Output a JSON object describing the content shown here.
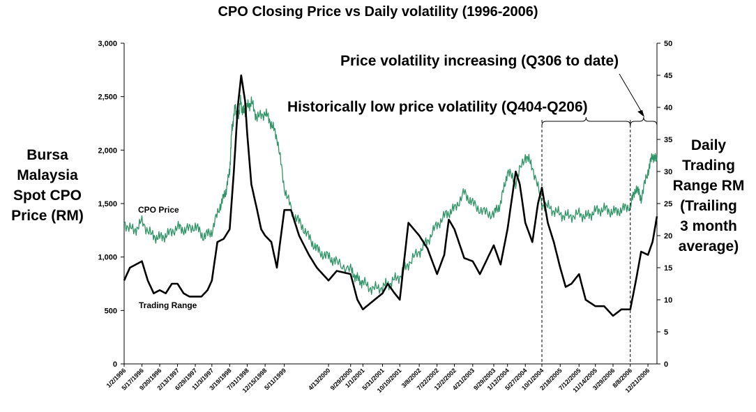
{
  "chart_data": {
    "type": "line",
    "title": "CPO Closing Price vs Daily volatility (1996-2006)",
    "ylabel_left": "Bursa\nMalaysia\nSpot CPO\nPrice (RM)",
    "ylabel_right": "Daily\nTrading\nRange RM\n(Trailing\n3 month\naverage)",
    "y_left": {
      "min": 0,
      "max": 3000,
      "ticks": [
        "0",
        "500",
        "1,000",
        "1,500",
        "2,000",
        "2,500",
        "3,000"
      ]
    },
    "y_right": {
      "min": 0,
      "max": 50,
      "ticks": [
        "0",
        "5",
        "10",
        "15",
        "20",
        "25",
        "30",
        "35",
        "40",
        "45",
        "50"
      ]
    },
    "x_ticks": [
      "1/2/1996",
      "5/17/1996",
      "9/30/1996",
      "2/13/1997",
      "6/29/1997",
      "11/3/1997",
      "3/19/1998",
      "7/31/1998",
      "12/15/1998",
      "5/11/1999",
      "4/13/2000",
      "9/29/2000",
      "1/1/2001",
      "5/31/2001",
      "10/10/2001",
      "3/8/2002",
      "7/22/2002",
      "12/2/2002",
      "4/21/2003",
      "9/29/2003",
      "1/12/2004",
      "5/27/2004",
      "10/1/2004",
      "2/18/2005",
      "7/12/2005",
      "11/14/2005",
      "3/29/2006",
      "8/8/2006",
      "12/21/2006"
    ],
    "x_range": [
      "1/2/1996",
      "2/28/2007"
    ],
    "series": [
      {
        "name": "CPO Price",
        "axis": "left",
        "color": "#2e9465",
        "points": [
          [
            "1/2/1996",
            1320
          ],
          [
            "3/15/1996",
            1240
          ],
          [
            "5/17/1996",
            1330
          ],
          [
            "8/1/1996",
            1200
          ],
          [
            "9/30/1996",
            1180
          ],
          [
            "12/1/1996",
            1210
          ],
          [
            "2/13/1997",
            1280
          ],
          [
            "4/15/1997",
            1250
          ],
          [
            "6/29/1997",
            1290
          ],
          [
            "9/1/1997",
            1190
          ],
          [
            "11/3/1997",
            1240
          ],
          [
            "1/5/1998",
            1480
          ],
          [
            "2/15/1998",
            1600
          ],
          [
            "3/19/1998",
            1800
          ],
          [
            "4/5/1998",
            2200
          ],
          [
            "5/1/1998",
            2400
          ],
          [
            "5/20/1998",
            2300
          ],
          [
            "6/10/1998",
            2450
          ],
          [
            "7/1/1998",
            2350
          ],
          [
            "7/31/1998",
            2400
          ],
          [
            "9/1/1998",
            2450
          ],
          [
            "10/15/1998",
            2300
          ],
          [
            "12/15/1998",
            2350
          ],
          [
            "2/1/1999",
            2250
          ],
          [
            "3/20/1999",
            2100
          ],
          [
            "5/11/1999",
            1650
          ],
          [
            "7/15/1999",
            1400
          ],
          [
            "9/20/1999",
            1300
          ],
          [
            "12/1/1999",
            1150
          ],
          [
            "2/1/2000",
            1050
          ],
          [
            "4/13/2000",
            1000
          ],
          [
            "6/15/2000",
            950
          ],
          [
            "9/29/2000",
            880
          ],
          [
            "11/15/2000",
            800
          ],
          [
            "1/1/2001",
            760
          ],
          [
            "3/15/2001",
            700
          ],
          [
            "5/31/2001",
            720
          ],
          [
            "8/1/2001",
            760
          ],
          [
            "10/10/2001",
            820
          ],
          [
            "12/15/2001",
            940
          ],
          [
            "3/8/2002",
            1050
          ],
          [
            "5/10/2002",
            1150
          ],
          [
            "7/22/2002",
            1300
          ],
          [
            "10/1/2002",
            1400
          ],
          [
            "12/2/2002",
            1450
          ],
          [
            "2/15/2003",
            1600
          ],
          [
            "4/21/2003",
            1500
          ],
          [
            "7/10/2003",
            1420
          ],
          [
            "9/29/2003",
            1400
          ],
          [
            "11/20/2003",
            1500
          ],
          [
            "1/12/2004",
            1800
          ],
          [
            "3/15/2004",
            1700
          ],
          [
            "5/27/2004",
            1950
          ],
          [
            "7/20/2004",
            1850
          ],
          [
            "10/1/2004",
            1500
          ],
          [
            "12/10/2004",
            1450
          ],
          [
            "2/18/2005",
            1400
          ],
          [
            "4/25/2005",
            1380
          ],
          [
            "7/12/2005",
            1400
          ],
          [
            "9/15/2005",
            1380
          ],
          [
            "11/14/2005",
            1430
          ],
          [
            "1/20/2006",
            1450
          ],
          [
            "3/29/2006",
            1420
          ],
          [
            "6/1/2006",
            1440
          ],
          [
            "8/8/2006",
            1480
          ],
          [
            "9/20/2006",
            1650
          ],
          [
            "10/30/2006",
            1550
          ],
          [
            "12/21/2006",
            1800
          ],
          [
            "1/25/2007",
            1950
          ],
          [
            "2/28/2007",
            1900
          ]
        ]
      },
      {
        "name": "Trading Range",
        "axis": "right",
        "color": "#000000",
        "points": [
          [
            "1/2/1996",
            13
          ],
          [
            "2/15/1996",
            15
          ],
          [
            "4/1/1996",
            15.5
          ],
          [
            "5/17/1996",
            16
          ],
          [
            "7/1/1996",
            13
          ],
          [
            "8/15/1996",
            11
          ],
          [
            "9/30/1996",
            11.5
          ],
          [
            "11/15/1996",
            11
          ],
          [
            "1/1/1997",
            12.5
          ],
          [
            "2/13/1997",
            12.5
          ],
          [
            "4/1/1997",
            11
          ],
          [
            "5/15/1997",
            10.5
          ],
          [
            "6/29/1997",
            10.5
          ],
          [
            "8/15/1997",
            10.5
          ],
          [
            "10/1/1997",
            11.5
          ],
          [
            "11/3/1997",
            13
          ],
          [
            "12/15/1997",
            19
          ],
          [
            "2/1/1998",
            19.5
          ],
          [
            "3/19/1998",
            21
          ],
          [
            "4/20/1998",
            30
          ],
          [
            "5/20/1998",
            40
          ],
          [
            "6/15/1998",
            45
          ],
          [
            "7/15/1998",
            41
          ],
          [
            "7/31/1998",
            36
          ],
          [
            "9/1/1998",
            28
          ],
          [
            "10/15/1998",
            24
          ],
          [
            "11/15/1998",
            21
          ],
          [
            "12/15/1998",
            20
          ],
          [
            "2/1/1999",
            19
          ],
          [
            "3/15/1999",
            15
          ],
          [
            "5/11/1999",
            24
          ],
          [
            "7/1/1999",
            24
          ],
          [
            "9/1/1999",
            20
          ],
          [
            "11/15/1999",
            17
          ],
          [
            "1/15/2000",
            15
          ],
          [
            "4/13/2000",
            13
          ],
          [
            "6/15/2000",
            14.5
          ],
          [
            "9/29/2000",
            14
          ],
          [
            "11/20/2000",
            10
          ],
          [
            "1/1/2001",
            8.5
          ],
          [
            "3/1/2001",
            9.5
          ],
          [
            "5/31/2001",
            11
          ],
          [
            "7/10/2001",
            12.5
          ],
          [
            "9/1/2001",
            11
          ],
          [
            "10/10/2001",
            10
          ],
          [
            "12/15/2001",
            22
          ],
          [
            "3/8/2002",
            20
          ],
          [
            "5/10/2002",
            18
          ],
          [
            "7/22/2002",
            14
          ],
          [
            "9/15/2002",
            17
          ],
          [
            "10/20/2002",
            22.5
          ],
          [
            "12/2/2002",
            21
          ],
          [
            "2/15/2003",
            16.5
          ],
          [
            "4/21/2003",
            16
          ],
          [
            "6/15/2003",
            14
          ],
          [
            "8/1/2003",
            16
          ],
          [
            "9/29/2003",
            18.5
          ],
          [
            "11/20/2003",
            15.5
          ],
          [
            "1/12/2004",
            21
          ],
          [
            "3/15/2004",
            30
          ],
          [
            "4/15/2004",
            28
          ],
          [
            "5/27/2004",
            22
          ],
          [
            "7/20/2004",
            19
          ],
          [
            "9/1/2004",
            25
          ],
          [
            "10/1/2004",
            27.5
          ],
          [
            "11/15/2004",
            22
          ],
          [
            "12/31/2004",
            19
          ],
          [
            "2/18/2005",
            15
          ],
          [
            "4/1/2005",
            12
          ],
          [
            "5/15/2005",
            12.5
          ],
          [
            "7/12/2005",
            14
          ],
          [
            "9/1/2005",
            10
          ],
          [
            "11/14/2005",
            9
          ],
          [
            "1/20/2006",
            9
          ],
          [
            "3/29/2006",
            7.5
          ],
          [
            "6/1/2006",
            8.5
          ],
          [
            "8/8/2006",
            8.5
          ],
          [
            "9/20/2006",
            13
          ],
          [
            "10/30/2006",
            17.5
          ],
          [
            "12/21/2006",
            17
          ],
          [
            "1/25/2007",
            19
          ],
          [
            "2/28/2007",
            23
          ]
        ]
      }
    ],
    "series_labels": [
      "CPO Price",
      "Trading Range"
    ],
    "annotations": [
      {
        "text": "Price volatility increasing (Q306 to date)",
        "from": "8/8/2006",
        "to": "2/28/2007"
      },
      {
        "text": "Historically low price volatility (Q404-Q206)",
        "from": "10/1/2004",
        "to": "8/8/2006"
      }
    ]
  }
}
